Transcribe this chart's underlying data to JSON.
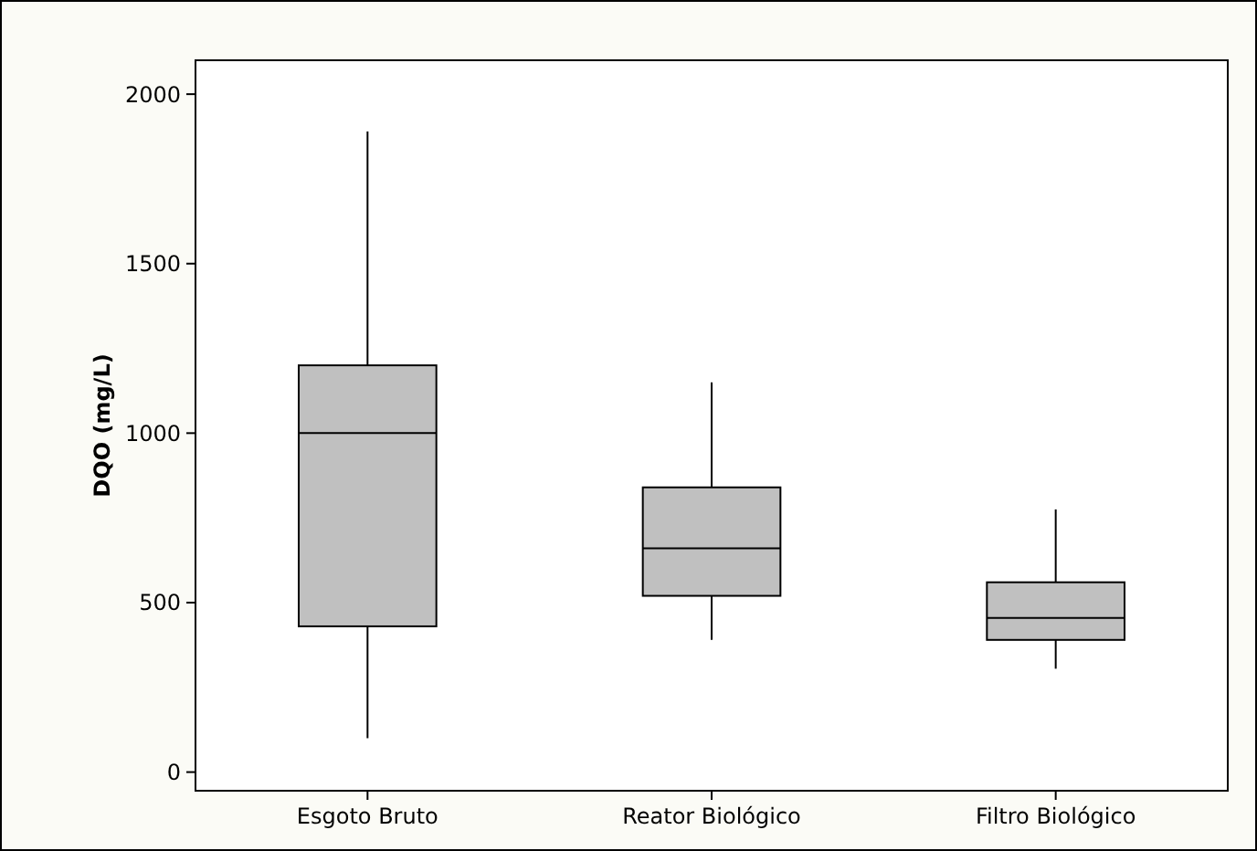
{
  "chart_data": {
    "type": "box",
    "ylabel": "DQO (mg/L)",
    "categories": [
      "Esgoto Bruto",
      "Reator Biológico",
      "Filtro Biológico"
    ],
    "color": "#c0c0c0",
    "boxes": [
      {
        "low": 100,
        "q1": 430,
        "median": 1000,
        "q3": 1200,
        "high": 1890
      },
      {
        "low": 390,
        "q1": 520,
        "median": 660,
        "q3": 840,
        "high": 1150
      },
      {
        "low": 305,
        "q1": 390,
        "median": 455,
        "q3": 560,
        "high": 775
      }
    ],
    "ylim": [
      -55,
      2100
    ],
    "yticks": [
      0,
      500,
      1000,
      1500,
      2000
    ],
    "grid": false
  }
}
